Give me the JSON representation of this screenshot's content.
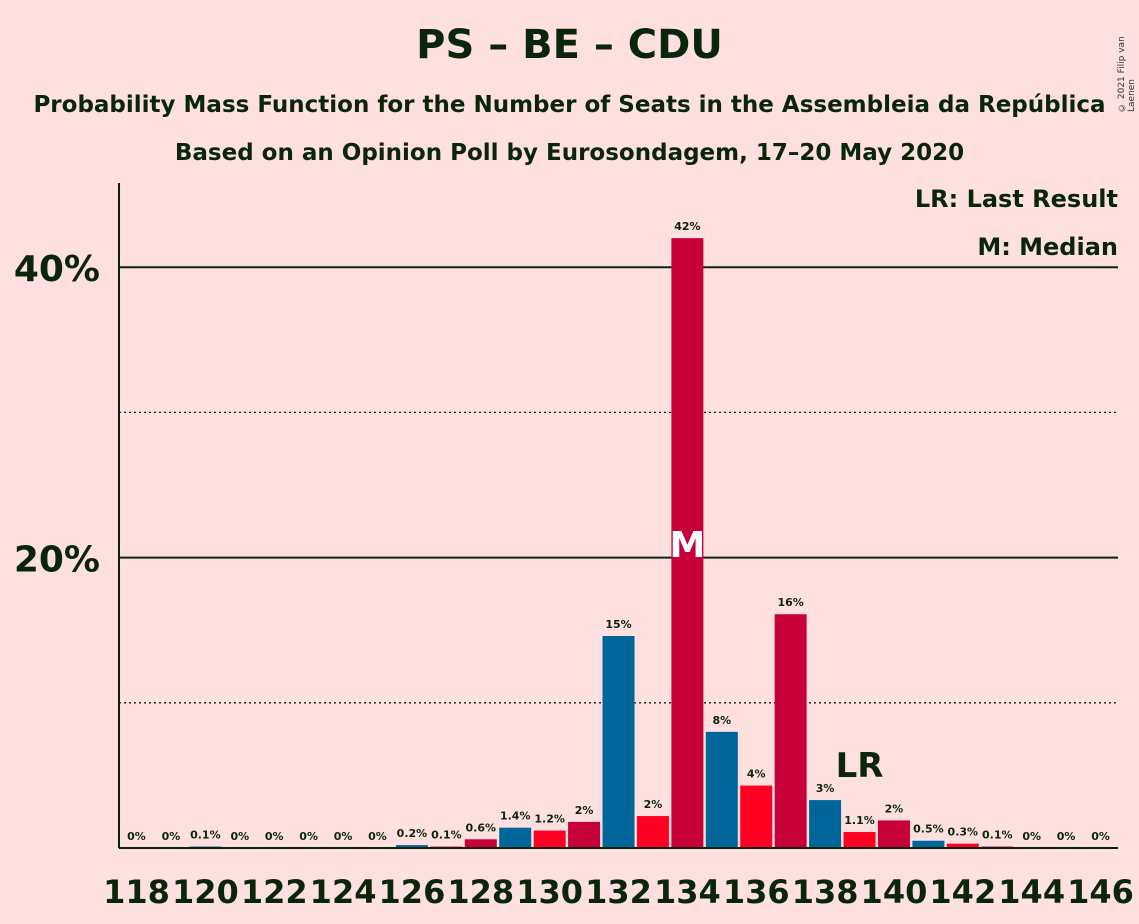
{
  "header": {
    "title": "PS – BE – CDU",
    "subtitle1": "Probability Mass Function for the Number of Seats in the Assembleia da República",
    "subtitle2": "Based on an Opinion Poll by Eurosondagem, 17–20 May 2020",
    "copyright": "© 2021 Filip van Laenen"
  },
  "legend": {
    "last_result": "LR: Last Result",
    "median": "M: Median"
  },
  "chart_data": {
    "type": "bar",
    "title": "PS – BE – CDU",
    "xlabel": "",
    "ylabel": "",
    "ylim": [
      0,
      45
    ],
    "y_ticks": [
      0,
      10,
      20,
      30,
      40
    ],
    "y_tick_labels": [
      "",
      "",
      "20%",
      "",
      "40%"
    ],
    "x": [
      118,
      119,
      120,
      121,
      122,
      123,
      124,
      125,
      126,
      127,
      128,
      129,
      130,
      131,
      132,
      133,
      134,
      135,
      136,
      137,
      138,
      139,
      140,
      141,
      142,
      143,
      144,
      145,
      146
    ],
    "x_tick_labels": [
      "118",
      "120",
      "122",
      "124",
      "126",
      "128",
      "130",
      "132",
      "134",
      "136",
      "138",
      "140",
      "142",
      "144",
      "146"
    ],
    "values": [
      0,
      0,
      0.1,
      0,
      0,
      0,
      0,
      0,
      0.2,
      0.1,
      0.6,
      1.4,
      1.2,
      1.8,
      14.6,
      2.2,
      42,
      8.0,
      4.3,
      16.1,
      3.3,
      1.1,
      1.9,
      0.5,
      0.3,
      0.1,
      0,
      0,
      0
    ],
    "labels": [
      "0%",
      "0%",
      "0.1%",
      "0%",
      "0%",
      "0%",
      "0%",
      "0%",
      "0.2%",
      "0.1%",
      "0.6%",
      "1.4%",
      "1.2%",
      "2%",
      "15%",
      "2%",
      "42%",
      "8%",
      "4%",
      "16%",
      "3%",
      "1.1%",
      "2%",
      "0.5%",
      "0.3%",
      "0.1%",
      "0%",
      "0%",
      "0%"
    ],
    "colors": [
      "#ff0022",
      "#c8003a",
      "#006699"
    ],
    "median_seat": 134,
    "median_marker": "M",
    "last_result_seat": 139,
    "last_result_marker": "LR"
  }
}
